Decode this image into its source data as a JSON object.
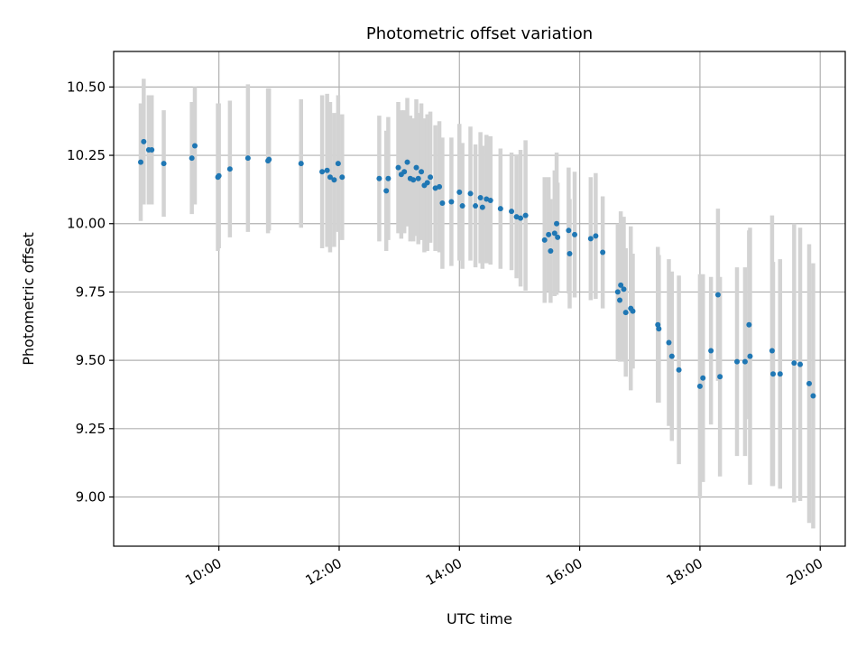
{
  "chart_data": {
    "type": "scatter",
    "title": "Photometric offset variation",
    "xlabel": "UTC time",
    "ylabel": "Photometric offset",
    "x_axis_kind": "time (hours UTC)",
    "xlim": [
      "08:15",
      "20:25"
    ],
    "ylim": [
      8.82,
      10.63
    ],
    "x_ticks": [
      "10:00",
      "12:00",
      "14:00",
      "16:00",
      "18:00",
      "20:00"
    ],
    "y_ticks": [
      "9.00",
      "9.25",
      "9.50",
      "9.75",
      "10.00",
      "10.25",
      "10.50"
    ],
    "grid": true,
    "colors": {
      "point": "#1f77b4",
      "errorbar": "#d3d3d3",
      "grid": "#b0b0b0",
      "axes": "#000000"
    },
    "series": [
      {
        "marker": "point with vertical error bar",
        "points": [
          {
            "x": "08:42",
            "y": 10.225,
            "err": 0.215
          },
          {
            "x": "08:45",
            "y": 10.3,
            "err": 0.23
          },
          {
            "x": "08:50",
            "y": 10.27,
            "err": 0.2
          },
          {
            "x": "08:53",
            "y": 10.27,
            "err": 0.2
          },
          {
            "x": "09:05",
            "y": 10.22,
            "err": 0.195
          },
          {
            "x": "09:33",
            "y": 10.24,
            "err": 0.205
          },
          {
            "x": "09:36",
            "y": 10.285,
            "err": 0.215
          },
          {
            "x": "09:59",
            "y": 10.17,
            "err": 0.27
          },
          {
            "x": "10:00",
            "y": 10.175,
            "err": 0.265
          },
          {
            "x": "10:11",
            "y": 10.2,
            "err": 0.25
          },
          {
            "x": "10:29",
            "y": 10.24,
            "err": 0.27
          },
          {
            "x": "10:49",
            "y": 10.23,
            "err": 0.265
          },
          {
            "x": "10:50",
            "y": 10.235,
            "err": 0.26
          },
          {
            "x": "11:22",
            "y": 10.22,
            "err": 0.235
          },
          {
            "x": "11:43",
            "y": 10.19,
            "err": 0.28
          },
          {
            "x": "11:48",
            "y": 10.195,
            "err": 0.28
          },
          {
            "x": "11:51",
            "y": 10.17,
            "err": 0.275
          },
          {
            "x": "11:55",
            "y": 10.16,
            "err": 0.245
          },
          {
            "x": "11:59",
            "y": 10.22,
            "err": 0.25
          },
          {
            "x": "12:03",
            "y": 10.17,
            "err": 0.23
          },
          {
            "x": "12:40",
            "y": 10.165,
            "err": 0.23
          },
          {
            "x": "12:47",
            "y": 10.12,
            "err": 0.22
          },
          {
            "x": "12:49",
            "y": 10.165,
            "err": 0.225
          },
          {
            "x": "12:59",
            "y": 10.205,
            "err": 0.24
          },
          {
            "x": "13:02",
            "y": 10.18,
            "err": 0.235
          },
          {
            "x": "13:05",
            "y": 10.19,
            "err": 0.225
          },
          {
            "x": "13:08",
            "y": 10.225,
            "err": 0.235
          },
          {
            "x": "13:11",
            "y": 10.165,
            "err": 0.23
          },
          {
            "x": "13:14",
            "y": 10.16,
            "err": 0.225
          },
          {
            "x": "13:17",
            "y": 10.205,
            "err": 0.25
          },
          {
            "x": "13:19",
            "y": 10.165,
            "err": 0.24
          },
          {
            "x": "13:22",
            "y": 10.19,
            "err": 0.25
          },
          {
            "x": "13:25",
            "y": 10.14,
            "err": 0.245
          },
          {
            "x": "13:28",
            "y": 10.15,
            "err": 0.25
          },
          {
            "x": "13:31",
            "y": 10.17,
            "err": 0.24
          },
          {
            "x": "13:36",
            "y": 10.13,
            "err": 0.23
          },
          {
            "x": "13:40",
            "y": 10.135,
            "err": 0.24
          },
          {
            "x": "13:43",
            "y": 10.075,
            "err": 0.24
          },
          {
            "x": "13:52",
            "y": 10.08,
            "err": 0.235
          },
          {
            "x": "14:00",
            "y": 10.115,
            "err": 0.25
          },
          {
            "x": "14:03",
            "y": 10.065,
            "err": 0.23
          },
          {
            "x": "14:11",
            "y": 10.11,
            "err": 0.245
          },
          {
            "x": "14:16",
            "y": 10.065,
            "err": 0.225
          },
          {
            "x": "14:21",
            "y": 10.095,
            "err": 0.24
          },
          {
            "x": "14:23",
            "y": 10.06,
            "err": 0.225
          },
          {
            "x": "14:27",
            "y": 10.09,
            "err": 0.235
          },
          {
            "x": "14:31",
            "y": 10.085,
            "err": 0.235
          },
          {
            "x": "14:41",
            "y": 10.055,
            "err": 0.22
          },
          {
            "x": "14:52",
            "y": 10.045,
            "err": 0.215
          },
          {
            "x": "14:57",
            "y": 10.025,
            "err": 0.225
          },
          {
            "x": "15:01",
            "y": 10.02,
            "err": 0.25
          },
          {
            "x": "15:06",
            "y": 10.03,
            "err": 0.275
          },
          {
            "x": "15:25",
            "y": 9.94,
            "err": 0.23
          },
          {
            "x": "15:29",
            "y": 9.96,
            "err": 0.21
          },
          {
            "x": "15:31",
            "y": 9.9,
            "err": 0.19
          },
          {
            "x": "15:35",
            "y": 9.965,
            "err": 0.23
          },
          {
            "x": "15:37",
            "y": 10.0,
            "err": 0.26
          },
          {
            "x": "15:38",
            "y": 9.95,
            "err": 0.2
          },
          {
            "x": "15:49",
            "y": 9.975,
            "err": 0.23
          },
          {
            "x": "15:50",
            "y": 9.89,
            "err": 0.2
          },
          {
            "x": "15:55",
            "y": 9.96,
            "err": 0.23
          },
          {
            "x": "16:11",
            "y": 9.945,
            "err": 0.225
          },
          {
            "x": "16:16",
            "y": 9.955,
            "err": 0.23
          },
          {
            "x": "16:23",
            "y": 9.895,
            "err": 0.205
          },
          {
            "x": "16:38",
            "y": 9.75,
            "err": 0.25
          },
          {
            "x": "16:40",
            "y": 9.72,
            "err": 0.225
          },
          {
            "x": "16:41",
            "y": 9.775,
            "err": 0.27
          },
          {
            "x": "16:44",
            "y": 9.76,
            "err": 0.265
          },
          {
            "x": "16:46",
            "y": 9.675,
            "err": 0.235
          },
          {
            "x": "16:51",
            "y": 9.69,
            "err": 0.3
          },
          {
            "x": "16:53",
            "y": 9.68,
            "err": 0.21
          },
          {
            "x": "17:18",
            "y": 9.63,
            "err": 0.285
          },
          {
            "x": "17:19",
            "y": 9.615,
            "err": 0.27
          },
          {
            "x": "17:29",
            "y": 9.565,
            "err": 0.305
          },
          {
            "x": "17:32",
            "y": 9.515,
            "err": 0.31
          },
          {
            "x": "17:39",
            "y": 9.465,
            "err": 0.345
          },
          {
            "x": "18:00",
            "y": 9.405,
            "err": 0.41
          },
          {
            "x": "18:03",
            "y": 9.435,
            "err": 0.38
          },
          {
            "x": "18:11",
            "y": 9.535,
            "err": 0.27
          },
          {
            "x": "18:18",
            "y": 9.74,
            "err": 0.315
          },
          {
            "x": "18:20",
            "y": 9.44,
            "err": 0.365
          },
          {
            "x": "18:37",
            "y": 9.495,
            "err": 0.345
          },
          {
            "x": "18:45",
            "y": 9.495,
            "err": 0.345
          },
          {
            "x": "18:49",
            "y": 9.63,
            "err": 0.345
          },
          {
            "x": "18:50",
            "y": 9.515,
            "err": 0.47
          },
          {
            "x": "19:12",
            "y": 9.535,
            "err": 0.495
          },
          {
            "x": "19:13",
            "y": 9.45,
            "err": 0.41
          },
          {
            "x": "19:20",
            "y": 9.45,
            "err": 0.42
          },
          {
            "x": "19:34",
            "y": 9.49,
            "err": 0.51
          },
          {
            "x": "19:40",
            "y": 9.485,
            "err": 0.5
          },
          {
            "x": "19:49",
            "y": 9.415,
            "err": 0.51
          },
          {
            "x": "19:53",
            "y": 9.37,
            "err": 0.485
          }
        ]
      }
    ]
  }
}
